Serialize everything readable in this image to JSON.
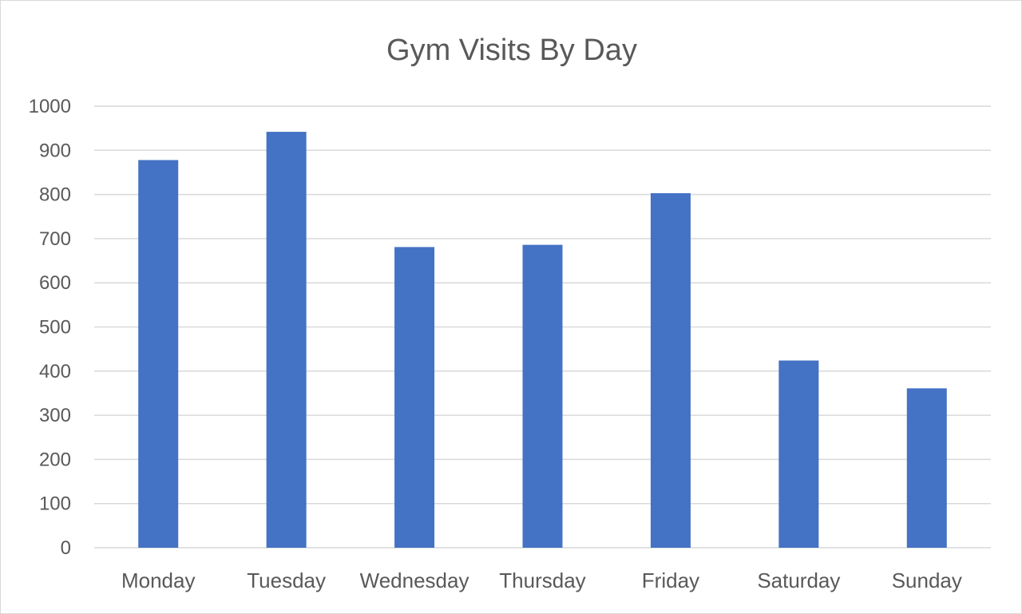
{
  "chart_data": {
    "type": "bar",
    "title": "Gym Visits By Day",
    "categories": [
      "Monday",
      "Tuesday",
      "Wednesday",
      "Thursday",
      "Friday",
      "Saturday",
      "Sunday"
    ],
    "values": [
      878,
      942,
      681,
      686,
      803,
      424,
      361
    ],
    "ylim": [
      0,
      1000
    ],
    "yticks": [
      0,
      100,
      200,
      300,
      400,
      500,
      600,
      700,
      800,
      900,
      1000
    ],
    "grid": true,
    "legend": "none",
    "colors": {
      "bar": "#4472c4",
      "grid": "#d9d9d9",
      "text": "#595959"
    }
  }
}
